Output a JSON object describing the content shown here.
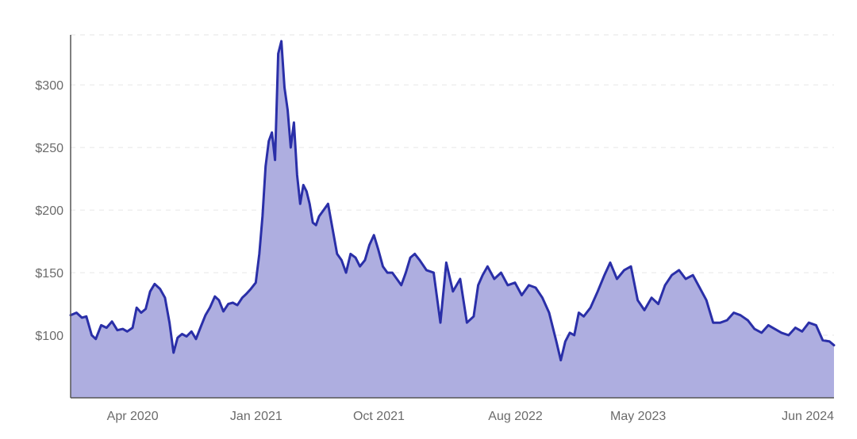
{
  "chart_data": {
    "type": "area",
    "title": "",
    "xlabel": "",
    "ylabel": "",
    "x_tick_labels": [
      "Apr 2020",
      "Jan 2021",
      "Oct 2021",
      "Aug 2022",
      "May 2023",
      "Jun 2024"
    ],
    "x_tick_dates": [
      "2020-04-01",
      "2021-01-01",
      "2021-10-01",
      "2022-08-01",
      "2023-05-01",
      "2024-06-01"
    ],
    "y_tick_labels": [
      "$100",
      "$150",
      "$200",
      "$250",
      "$300"
    ],
    "y_tick_values": [
      100,
      150,
      200,
      250,
      300
    ],
    "ylim": [
      50,
      340
    ],
    "xlim": [
      "2019-11-15",
      "2024-07-10"
    ],
    "grid": true,
    "colors": {
      "line": "#2a2fa8",
      "fill": "#aeaee0"
    },
    "series": [
      {
        "x": [
          "2019-11-15",
          "2019-11-28",
          "2019-12-10",
          "2019-12-20",
          "2020-01-01",
          "2020-01-10",
          "2020-01-22",
          "2020-02-03",
          "2020-02-15",
          "2020-02-27",
          "2020-03-10",
          "2020-03-20",
          "2020-04-01",
          "2020-04-10",
          "2020-04-20",
          "2020-04-30",
          "2020-05-10",
          "2020-05-20",
          "2020-06-01",
          "2020-06-12",
          "2020-06-22",
          "2020-07-01",
          "2020-07-10",
          "2020-07-20",
          "2020-07-30",
          "2020-08-10",
          "2020-08-20",
          "2020-09-01",
          "2020-09-10",
          "2020-09-20",
          "2020-10-01",
          "2020-10-10",
          "2020-10-20",
          "2020-10-31",
          "2020-11-10",
          "2020-11-20",
          "2020-12-01",
          "2020-12-10",
          "2020-12-20",
          "2020-12-31",
          "2021-01-08",
          "2021-01-15",
          "2021-01-22",
          "2021-01-29",
          "2021-02-05",
          "2021-02-12",
          "2021-02-19",
          "2021-02-26",
          "2021-03-05",
          "2021-03-12",
          "2021-03-19",
          "2021-03-26",
          "2021-04-02",
          "2021-04-09",
          "2021-04-16",
          "2021-04-23",
          "2021-04-30",
          "2021-05-07",
          "2021-05-14",
          "2021-05-21",
          "2021-05-31",
          "2021-06-10",
          "2021-06-20",
          "2021-06-30",
          "2021-07-10",
          "2021-07-20",
          "2021-07-30",
          "2021-08-10",
          "2021-08-20",
          "2021-08-31",
          "2021-09-10",
          "2021-09-20",
          "2021-09-30",
          "2021-10-10",
          "2021-10-20",
          "2021-10-31",
          "2021-11-10",
          "2021-11-20",
          "2021-11-30",
          "2021-12-10",
          "2021-12-20",
          "2021-12-31",
          "2022-01-15",
          "2022-01-31",
          "2022-02-15",
          "2022-02-28",
          "2022-03-15",
          "2022-03-31",
          "2022-04-15",
          "2022-04-30",
          "2022-05-10",
          "2022-05-20",
          "2022-05-31",
          "2022-06-15",
          "2022-06-30",
          "2022-07-15",
          "2022-07-31",
          "2022-08-15",
          "2022-08-31",
          "2022-09-15",
          "2022-09-30",
          "2022-10-15",
          "2022-10-31",
          "2022-11-10",
          "2022-11-20",
          "2022-11-30",
          "2022-12-10",
          "2022-12-20",
          "2022-12-31",
          "2023-01-15",
          "2023-01-31",
          "2023-02-15",
          "2023-02-28",
          "2023-03-15",
          "2023-03-31",
          "2023-04-15",
          "2023-04-30",
          "2023-05-15",
          "2023-05-31",
          "2023-06-15",
          "2023-06-30",
          "2023-07-15",
          "2023-07-31",
          "2023-08-15",
          "2023-08-31",
          "2023-09-15",
          "2023-09-30",
          "2023-10-15",
          "2023-10-31",
          "2023-11-15",
          "2023-11-30",
          "2023-12-15",
          "2023-12-31",
          "2024-01-15",
          "2024-01-31",
          "2024-02-15",
          "2024-02-29",
          "2024-03-15",
          "2024-03-31",
          "2024-04-15",
          "2024-04-30",
          "2024-05-15",
          "2024-05-31",
          "2024-06-15",
          "2024-06-30",
          "2024-07-10"
        ],
        "values": [
          116,
          118,
          114,
          115,
          100,
          97,
          108,
          106,
          111,
          104,
          105,
          103,
          106,
          122,
          118,
          121,
          135,
          141,
          137,
          130,
          110,
          86,
          98,
          101,
          99,
          103,
          97,
          108,
          116,
          122,
          131,
          128,
          119,
          125,
          126,
          124,
          130,
          133,
          137,
          142,
          165,
          195,
          235,
          255,
          262,
          240,
          325,
          335,
          298,
          280,
          250,
          270,
          228,
          205,
          220,
          215,
          205,
          190,
          188,
          195,
          200,
          205,
          185,
          165,
          160,
          150,
          165,
          162,
          155,
          160,
          172,
          180,
          168,
          155,
          150,
          150,
          145,
          140,
          150,
          162,
          165,
          160,
          152,
          150,
          110,
          158,
          135,
          145,
          110,
          115,
          140,
          148,
          155,
          145,
          150,
          140,
          142,
          132,
          140,
          138,
          130,
          118,
          95,
          80,
          95,
          102,
          100,
          118,
          115,
          122,
          135,
          148,
          158,
          145,
          152,
          155,
          128,
          120,
          130,
          125,
          140,
          148,
          152,
          145,
          148,
          138,
          128,
          110,
          110,
          112,
          118,
          116,
          112,
          105,
          102,
          108,
          105,
          102,
          100,
          106,
          103,
          110,
          108,
          96,
          95,
          92
        ]
      }
    ]
  }
}
